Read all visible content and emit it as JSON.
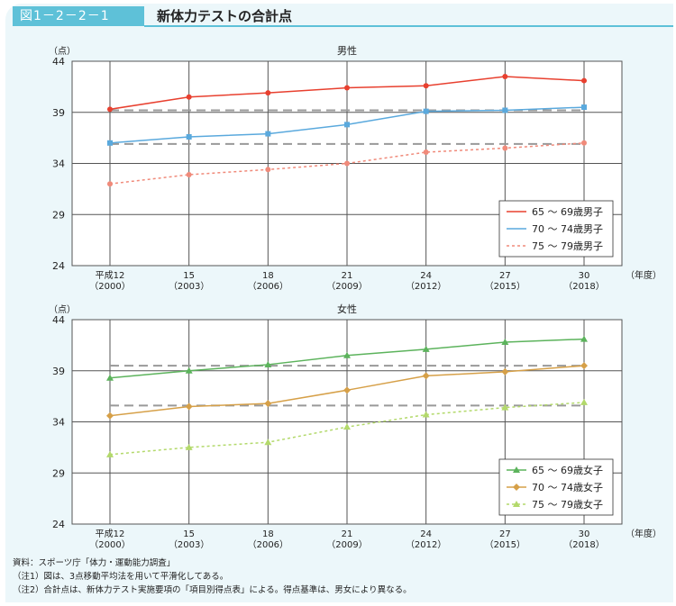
{
  "header": {
    "figure_number": "図1－2－2－1",
    "title": "新体力テストの合計点"
  },
  "notes": [
    "資料：スポーツ庁「体力・運動能力調査」",
    "（注1）図は、3点移動平均法を用いて平滑化してある。",
    "（注2）合計点は、新体力テスト実施要項の「項目別得点表」による。得点基準は、男女により異なる。"
  ],
  "colors": {
    "grid": "#555555",
    "plot_bg": "#ffffff",
    "dashed_ref": "#999999"
  },
  "chart_data": [
    {
      "type": "line",
      "title": "男性",
      "ylabel": "（点）",
      "xlabel": "（年度）",
      "categories": [
        "平成12\n（2000）",
        "15\n（2003）",
        "18\n（2006）",
        "21\n（2009）",
        "24\n（2012）",
        "27\n（2015）",
        "30\n（2018）"
      ],
      "yticks": [
        24,
        29,
        34,
        39,
        44
      ],
      "ylim": [
        24,
        44
      ],
      "legend_position": "bottom-right",
      "series": [
        {
          "name": "65 ～ 69歳男子",
          "color": "#e8402f",
          "dash": "solid",
          "marker": "circle",
          "values": [
            39.3,
            40.5,
            40.9,
            41.4,
            41.6,
            42.5,
            42.1
          ]
        },
        {
          "name": "70 ～ 74歳男子",
          "color": "#5aa9dd",
          "dash": "solid",
          "marker": "square",
          "values": [
            36.0,
            36.6,
            36.9,
            37.8,
            39.1,
            39.2,
            39.5
          ]
        },
        {
          "name": "75 ～ 79歳男子",
          "color": "#f08a7a",
          "dash": "dotted",
          "marker": "circle",
          "values": [
            32.0,
            32.9,
            33.4,
            34.0,
            35.1,
            35.5,
            36.0
          ]
        }
      ],
      "reference_lines": [
        39.2,
        35.9
      ]
    },
    {
      "type": "line",
      "title": "女性",
      "ylabel": "（点）",
      "xlabel": "（年度）",
      "categories": [
        "平成12\n（2000）",
        "15\n（2003）",
        "18\n（2006）",
        "21\n（2009）",
        "24\n（2012）",
        "27\n（2015）",
        "30\n（2018）"
      ],
      "yticks": [
        24,
        29,
        34,
        39,
        44
      ],
      "ylim": [
        24,
        44
      ],
      "legend_position": "bottom-right",
      "series": [
        {
          "name": "65 ～ 69歳女子",
          "color": "#5cb35c",
          "dash": "solid",
          "marker": "triangle",
          "values": [
            38.3,
            39.0,
            39.6,
            40.5,
            41.1,
            41.8,
            42.1
          ]
        },
        {
          "name": "70 ～ 74歳女子",
          "color": "#d6a048",
          "dash": "solid",
          "marker": "diamond",
          "values": [
            34.6,
            35.5,
            35.8,
            37.1,
            38.5,
            38.9,
            39.5
          ]
        },
        {
          "name": "75 ～ 79歳女子",
          "color": "#b3d96b",
          "dash": "dotted",
          "marker": "triangle",
          "values": [
            30.8,
            31.5,
            32.0,
            33.5,
            34.7,
            35.4,
            35.9
          ]
        }
      ],
      "reference_lines": [
        39.5,
        35.6
      ]
    }
  ]
}
